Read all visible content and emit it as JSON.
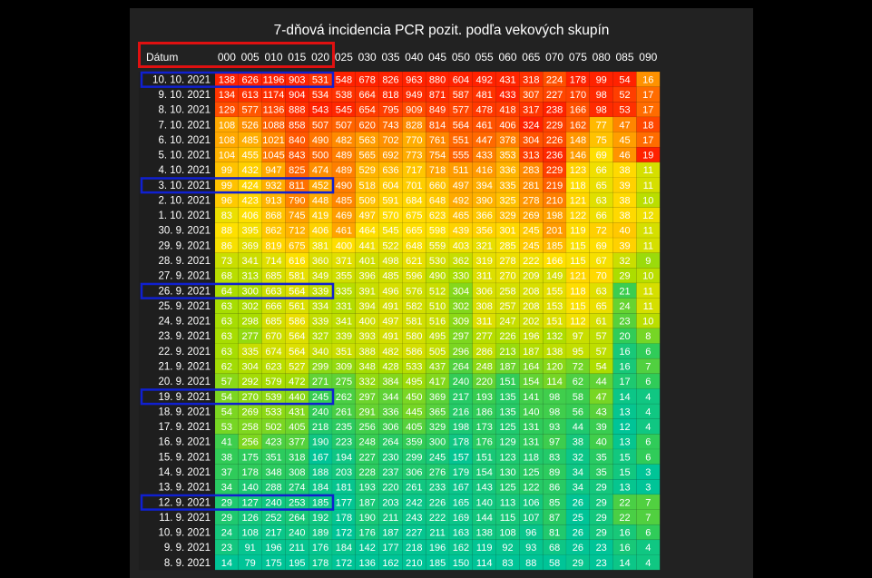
{
  "chart_data": {
    "type": "heatmap",
    "title": "7-dňová incidencia PCR pozit. podľa vekových skupín",
    "row_header": "Dátum",
    "columns": [
      "000",
      "005",
      "010",
      "015",
      "020",
      "025",
      "030",
      "035",
      "040",
      "045",
      "050",
      "055",
      "060",
      "065",
      "070",
      "075",
      "080",
      "085",
      "090"
    ],
    "rows": [
      {
        "date": "10. 10. 2021",
        "values": [
          138,
          626,
          1196,
          903,
          531,
          548,
          678,
          826,
          963,
          880,
          604,
          492,
          431,
          318,
          224,
          178,
          99,
          54,
          16
        ]
      },
      {
        "date": "9. 10. 2021",
        "values": [
          134,
          613,
          1174,
          904,
          534,
          538,
          664,
          818,
          949,
          871,
          587,
          481,
          433,
          307,
          227,
          170,
          98,
          52,
          17
        ]
      },
      {
        "date": "8. 10. 2021",
        "values": [
          129,
          577,
          1136,
          888,
          543,
          545,
          654,
          795,
          909,
          849,
          577,
          478,
          418,
          317,
          238,
          166,
          98,
          53,
          17
        ]
      },
      {
        "date": "7. 10. 2021",
        "values": [
          108,
          526,
          1088,
          858,
          507,
          507,
          620,
          743,
          828,
          814,
          564,
          461,
          406,
          324,
          229,
          162,
          77,
          47,
          18
        ]
      },
      {
        "date": "6. 10. 2021",
        "values": [
          108,
          485,
          1021,
          840,
          490,
          482,
          563,
          702,
          770,
          761,
          551,
          447,
          378,
          304,
          226,
          148,
          75,
          45,
          17
        ]
      },
      {
        "date": "5. 10. 2021",
        "values": [
          104,
          455,
          1045,
          843,
          500,
          489,
          565,
          692,
          773,
          754,
          555,
          433,
          353,
          313,
          236,
          146,
          69,
          46,
          19
        ]
      },
      {
        "date": "4. 10. 2021",
        "values": [
          99,
          432,
          947,
          825,
          474,
          489,
          529,
          636,
          717,
          718,
          511,
          416,
          336,
          283,
          229,
          123,
          66,
          38,
          11
        ]
      },
      {
        "date": "3. 10. 2021",
        "values": [
          99,
          424,
          932,
          811,
          452,
          490,
          518,
          604,
          701,
          660,
          497,
          394,
          335,
          281,
          219,
          118,
          65,
          39,
          11
        ]
      },
      {
        "date": "2. 10. 2021",
        "values": [
          96,
          423,
          913,
          790,
          448,
          485,
          509,
          591,
          684,
          648,
          492,
          390,
          325,
          278,
          210,
          121,
          63,
          38,
          10
        ]
      },
      {
        "date": "1. 10. 2021",
        "values": [
          83,
          406,
          868,
          745,
          419,
          469,
          497,
          570,
          675,
          623,
          465,
          366,
          329,
          269,
          198,
          122,
          66,
          38,
          12
        ]
      },
      {
        "date": "30. 9. 2021",
        "values": [
          88,
          395,
          862,
          712,
          406,
          461,
          464,
          545,
          665,
          598,
          439,
          356,
          301,
          245,
          201,
          119,
          72,
          40,
          11
        ]
      },
      {
        "date": "29. 9. 2021",
        "values": [
          86,
          369,
          819,
          675,
          381,
          400,
          441,
          522,
          648,
          559,
          403,
          321,
          285,
          245,
          185,
          115,
          69,
          39,
          11
        ]
      },
      {
        "date": "28. 9. 2021",
        "values": [
          73,
          341,
          714,
          616,
          360,
          371,
          401,
          498,
          621,
          530,
          362,
          319,
          278,
          222,
          166,
          115,
          67,
          32,
          9
        ]
      },
      {
        "date": "27. 9. 2021",
        "values": [
          68,
          313,
          685,
          581,
          349,
          355,
          396,
          485,
          596,
          490,
          330,
          311,
          270,
          209,
          149,
          121,
          70,
          29,
          10
        ]
      },
      {
        "date": "26. 9. 2021",
        "values": [
          64,
          300,
          663,
          564,
          339,
          335,
          391,
          496,
          576,
          512,
          304,
          306,
          258,
          208,
          155,
          118,
          63,
          21,
          11
        ]
      },
      {
        "date": "25. 9. 2021",
        "values": [
          63,
          302,
          666,
          561,
          334,
          331,
          394,
          491,
          582,
          510,
          302,
          308,
          257,
          208,
          153,
          115,
          65,
          24,
          11
        ]
      },
      {
        "date": "24. 9. 2021",
        "values": [
          63,
          298,
          685,
          586,
          339,
          341,
          400,
          497,
          581,
          516,
          309,
          311,
          247,
          202,
          151,
          112,
          61,
          23,
          10
        ]
      },
      {
        "date": "23. 9. 2021",
        "values": [
          63,
          277,
          670,
          564,
          327,
          339,
          393,
          491,
          580,
          495,
          297,
          277,
          226,
          196,
          132,
          97,
          57,
          20,
          8
        ]
      },
      {
        "date": "22. 9. 2021",
        "values": [
          63,
          335,
          674,
          564,
          340,
          351,
          388,
          482,
          586,
          505,
          296,
          286,
          213,
          187,
          138,
          95,
          57,
          16,
          6
        ]
      },
      {
        "date": "21. 9. 2021",
        "values": [
          62,
          304,
          623,
          527,
          299,
          309,
          348,
          428,
          533,
          437,
          264,
          248,
          187,
          164,
          120,
          72,
          54,
          16,
          7
        ]
      },
      {
        "date": "20. 9. 2021",
        "values": [
          57,
          292,
          579,
          472,
          271,
          275,
          332,
          384,
          495,
          417,
          240,
          220,
          151,
          154,
          114,
          62,
          44,
          17,
          6
        ]
      },
      {
        "date": "19. 9. 2021",
        "values": [
          54,
          270,
          539,
          440,
          245,
          262,
          297,
          344,
          450,
          369,
          217,
          193,
          135,
          141,
          98,
          58,
          47,
          14,
          4
        ]
      },
      {
        "date": "18. 9. 2021",
        "values": [
          54,
          269,
          533,
          431,
          240,
          261,
          291,
          336,
          445,
          365,
          216,
          186,
          135,
          140,
          98,
          56,
          43,
          13,
          4
        ]
      },
      {
        "date": "17. 9. 2021",
        "values": [
          53,
          258,
          502,
          405,
          218,
          235,
          256,
          306,
          405,
          329,
          198,
          173,
          125,
          131,
          93,
          44,
          39,
          12,
          4
        ]
      },
      {
        "date": "16. 9. 2021",
        "values": [
          41,
          256,
          423,
          377,
          190,
          223,
          248,
          264,
          359,
          300,
          178,
          176,
          129,
          131,
          97,
          38,
          40,
          13,
          6
        ]
      },
      {
        "date": "15. 9. 2021",
        "values": [
          38,
          175,
          351,
          318,
          167,
          194,
          227,
          230,
          299,
          245,
          157,
          151,
          123,
          118,
          83,
          32,
          35,
          15,
          6
        ]
      },
      {
        "date": "14. 9. 2021",
        "values": [
          37,
          178,
          348,
          308,
          188,
          203,
          228,
          237,
          306,
          276,
          179,
          154,
          130,
          125,
          89,
          34,
          35,
          15,
          3
        ]
      },
      {
        "date": "13. 9. 2021",
        "values": [
          34,
          140,
          288,
          274,
          184,
          181,
          193,
          220,
          261,
          233,
          167,
          143,
          125,
          122,
          86,
          34,
          29,
          13,
          3
        ]
      },
      {
        "date": "12. 9. 2021",
        "values": [
          29,
          127,
          240,
          253,
          185,
          177,
          187,
          203,
          242,
          226,
          165,
          140,
          113,
          106,
          85,
          26,
          29,
          22,
          7
        ]
      },
      {
        "date": "11. 9. 2021",
        "values": [
          29,
          126,
          252,
          264,
          192,
          178,
          190,
          211,
          243,
          222,
          169,
          144,
          115,
          107,
          87,
          25,
          29,
          22,
          7
        ]
      },
      {
        "date": "10. 9. 2021",
        "values": [
          24,
          108,
          217,
          240,
          189,
          172,
          176,
          187,
          227,
          211,
          163,
          138,
          108,
          96,
          81,
          26,
          29,
          16,
          6
        ]
      },
      {
        "date": "9. 9. 2021",
        "values": [
          23,
          91,
          196,
          211,
          176,
          184,
          142,
          177,
          218,
          196,
          162,
          119,
          92,
          93,
          68,
          26,
          23,
          16,
          4
        ]
      },
      {
        "date": "8. 9. 2021",
        "values": [
          14,
          79,
          175,
          195,
          178,
          172,
          136,
          162,
          210,
          185,
          150,
          114,
          83,
          88,
          58,
          29,
          23,
          14,
          4
        ]
      }
    ],
    "color_scale": [
      "#00c497",
      "#33cc55",
      "#aadd00",
      "#ffe000",
      "#ff9900",
      "#ff2200"
    ],
    "highlight_colors": {
      "header_box": "#e01010",
      "row_box": "#1020d0"
    }
  }
}
